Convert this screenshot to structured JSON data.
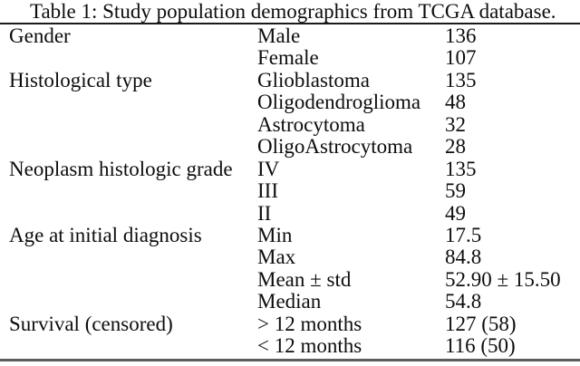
{
  "caption": "Table 1: Study population demographics from TCGA database.",
  "rules": {
    "top_color": "#1a1a1a",
    "bottom_color": "#5d5d5d"
  },
  "table": {
    "sections": [
      {
        "category": "Gender",
        "rows": [
          [
            "Male",
            "136"
          ],
          [
            "Female",
            "107"
          ]
        ]
      },
      {
        "category": "Histological type",
        "rows": [
          [
            "Glioblastoma",
            "135"
          ],
          [
            "Oligodendroglioma",
            "48"
          ],
          [
            "Astrocytoma",
            "32"
          ],
          [
            "OligoAstrocytoma",
            "28"
          ]
        ]
      },
      {
        "category": "Neoplasm histologic grade",
        "rows": [
          [
            "IV",
            "135"
          ],
          [
            "III",
            "59"
          ],
          [
            "II",
            "49"
          ]
        ]
      },
      {
        "category": "Age at initial diagnosis",
        "rows": [
          [
            "Min",
            "17.5"
          ],
          [
            "Max",
            "84.8"
          ],
          [
            "Mean ± std",
            "52.90 ± 15.50"
          ],
          [
            "Median",
            "54.8"
          ]
        ]
      },
      {
        "category": "Survival (censored)",
        "rows": [
          [
            "> 12 months",
            "127 (58)"
          ],
          [
            "< 12 months",
            "116 (50)"
          ]
        ]
      }
    ]
  }
}
